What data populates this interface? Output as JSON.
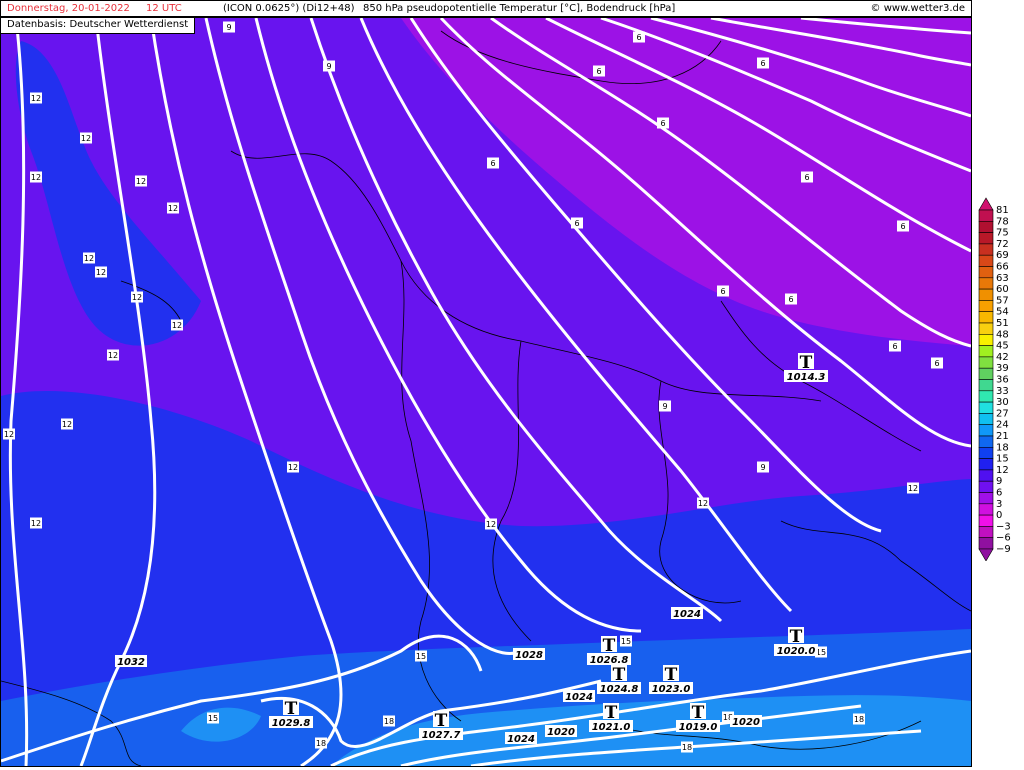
{
  "header": {
    "date": "Donnerstag, 20-01-2022",
    "time": "12 UTC",
    "model": "(ICON 0.0625°) (Di12+48)",
    "parameter": "850 hPa pseudopotentielle Temperatur [°C], Bodendruck [hPa]",
    "copyright": "© www.wetter3.de",
    "title_color": "#e8303a"
  },
  "source": "Datenbasis: Deutscher Wetterdienst",
  "legend": {
    "unit": "°C",
    "values": [
      "81",
      "78",
      "75",
      "72",
      "69",
      "66",
      "63",
      "60",
      "57",
      "54",
      "51",
      "48",
      "45",
      "42",
      "39",
      "36",
      "33",
      "30",
      "27",
      "24",
      "21",
      "18",
      "15",
      "12",
      "9",
      "6",
      "3",
      "0",
      "-3",
      "-6",
      "-9"
    ],
    "colors": [
      "#d0106e",
      "#c01050",
      "#b01030",
      "#b81828",
      "#c83020",
      "#d84818",
      "#e06010",
      "#e87808",
      "#f09000",
      "#f8a000",
      "#f8b800",
      "#f8d010",
      "#f8f000",
      "#a0f020",
      "#80e040",
      "#60d060",
      "#40d890",
      "#30e8b0",
      "#20e0e0",
      "#10c0f0",
      "#1098f8",
      "#1068f0",
      "#1040f0",
      "#2020f0",
      "#5010f0",
      "#7010f0",
      "#a010e8",
      "#d010e0",
      "#f010e8",
      "#c010c0",
      "#9010a0"
    ]
  },
  "map": {
    "colors": {
      "theta_e_6": "#9c12e6",
      "theta_e_9": "#6814ef",
      "theta_e_12": "#2230ef",
      "theta_e_15": "#1860ee",
      "theta_e_18": "#1e90f4",
      "isoline": "#ffffff",
      "borders": "#000000"
    },
    "isotherm_labels": [
      "12",
      "12",
      "12",
      "12",
      "12",
      "12",
      "12",
      "12",
      "12",
      "12",
      "12",
      "12",
      "12",
      "12",
      "12",
      "12",
      "12",
      "9",
      "9",
      "9",
      "9",
      "6",
      "6",
      "6",
      "6",
      "6",
      "6",
      "6",
      "6",
      "6",
      "6",
      "6",
      "6",
      "15",
      "15",
      "15",
      "15",
      "18",
      "18",
      "18",
      "18",
      "18"
    ],
    "pressure_labels": [
      "1032",
      "1028",
      "1024",
      "1024",
      "1024",
      "1020",
      "1020"
    ],
    "centers": [
      {
        "type": "T",
        "value": "1014.3"
      },
      {
        "type": "T",
        "value": "1026.8"
      },
      {
        "type": "T",
        "value": "1024.8"
      },
      {
        "type": "T",
        "value": "1023.0"
      },
      {
        "type": "T",
        "value": "1020.0"
      },
      {
        "type": "T",
        "value": "1029.8"
      },
      {
        "type": "T",
        "value": "1027.7"
      },
      {
        "type": "T",
        "value": "1021.0"
      },
      {
        "type": "T",
        "value": "1019.0"
      }
    ]
  }
}
